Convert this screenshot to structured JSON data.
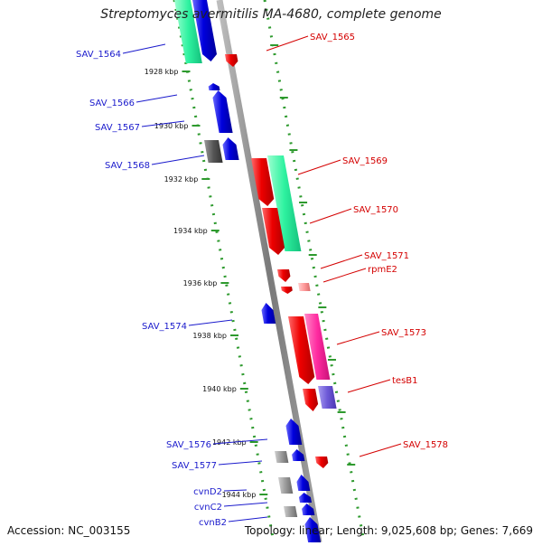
{
  "title": "Streptomyces avermitilis MA-4680, complete genome",
  "footer": {
    "accession": "Accession: NC_003155",
    "summary": "Topology: linear; Length: 9,025,608 bp; Genes: 7,669"
  },
  "colors": {
    "backbone": "#8a8a8a",
    "ruler_dots": "#2e9a2e",
    "plus_label": "#d40000",
    "minus_label": "#1a1acc",
    "scale_label": "#111111"
  },
  "scale_marks": [
    "1928 kbp",
    "1930 kbp",
    "1932 kbp",
    "1934 kbp",
    "1936 kbp",
    "1938 kbp",
    "1940 kbp",
    "1942 kbp",
    "1944 kbp"
  ],
  "genes_plus": [
    {
      "name": "SAV_1565",
      "color": "#ee0000"
    },
    {
      "name": "SAV_1569",
      "color": "#ee0000"
    },
    {
      "name": "SAV_1570",
      "color": "#ee0000"
    },
    {
      "name": "SAV_1571",
      "color": "#ee0000"
    },
    {
      "name": "rpmE2",
      "color": "#ee0000"
    },
    {
      "name": "SAV_1573",
      "color": "#ee0000"
    },
    {
      "name": "tesB1",
      "color": "#ee0000"
    },
    {
      "name": "SAV_1578",
      "color": "#ee0000"
    }
  ],
  "genes_minus": [
    {
      "name": "SAV_1564",
      "color": "#0000dd"
    },
    {
      "name": "SAV_1566",
      "color": "#0000dd"
    },
    {
      "name": "SAV_1567",
      "color": "#0000dd"
    },
    {
      "name": "SAV_1568",
      "color": "#0000dd"
    },
    {
      "name": "SAV_1574",
      "color": "#0000dd"
    },
    {
      "name": "SAV_1576",
      "color": "#0000dd"
    },
    {
      "name": "SAV_1577",
      "color": "#0000dd"
    },
    {
      "name": "cvnD2",
      "color": "#0000dd"
    },
    {
      "name": "cvnC2",
      "color": "#0000dd"
    },
    {
      "name": "cvnB2",
      "color": "#0000dd"
    }
  ]
}
